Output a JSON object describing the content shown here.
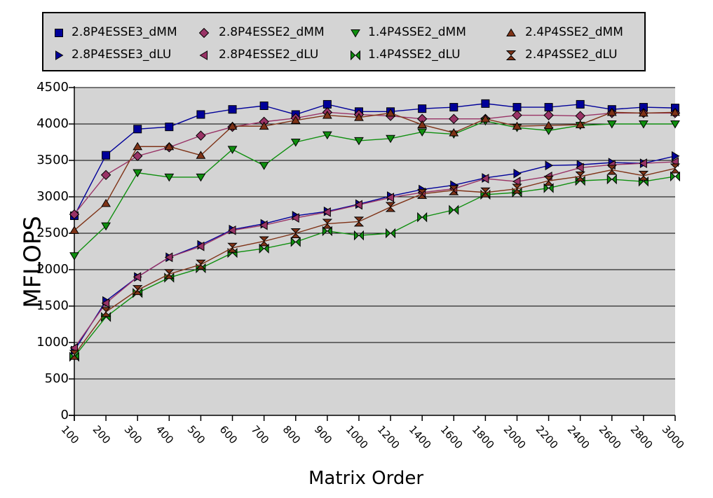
{
  "page": {
    "background": "#ffffff"
  },
  "chart_data": {
    "type": "line",
    "title": "",
    "xlabel": "Matrix Order",
    "ylabel": "MFLOPS",
    "x_categories": [
      100,
      200,
      300,
      400,
      500,
      600,
      700,
      800,
      900,
      1000,
      1200,
      1400,
      1600,
      1800,
      2000,
      2200,
      2400,
      2600,
      2800,
      3000
    ],
    "ylim": [
      0,
      4500
    ],
    "yticks": [
      0,
      500,
      1000,
      1500,
      2000,
      2500,
      3000,
      3500,
      4000,
      4500
    ],
    "grid": "horizontal",
    "gridline_color": "#000000",
    "plot_bg": "#d4d4d4",
    "legend": {
      "position": "top",
      "rows": 2,
      "bg": "#d4d4d4",
      "border_color": "#000000"
    },
    "series": [
      {
        "name": "2.8P4ESSE3_dMM",
        "marker": "square",
        "color": "#000099",
        "values": [
          2740,
          3570,
          3930,
          3960,
          4130,
          4200,
          4250,
          4130,
          4270,
          4170,
          4170,
          4210,
          4230,
          4280,
          4230,
          4230,
          4270,
          4200,
          4230,
          4220
        ]
      },
      {
        "name": "2.8P4ESSE2_dMM",
        "marker": "diamond",
        "color": "#993366",
        "values": [
          2760,
          3300,
          3560,
          3680,
          3840,
          3960,
          4030,
          4080,
          4160,
          4130,
          4110,
          4070,
          4070,
          4070,
          4120,
          4120,
          4110,
          4150,
          4150,
          4150
        ]
      },
      {
        "name": "1.4P4SSE2_dMM",
        "marker": "triangle-down",
        "color": "#0f8f0f",
        "values": [
          2190,
          2600,
          3330,
          3270,
          3270,
          3650,
          3430,
          3750,
          3850,
          3770,
          3800,
          3890,
          3860,
          4040,
          3950,
          3910,
          3980,
          4000,
          4000,
          4000
        ]
      },
      {
        "name": "2.4P4SSE2_dMM",
        "marker": "triangle-up",
        "color": "#7f3317",
        "values": [
          2540,
          2910,
          3690,
          3690,
          3570,
          3970,
          3970,
          4050,
          4120,
          4090,
          4150,
          3990,
          3880,
          4070,
          3970,
          3980,
          3990,
          4160,
          4150,
          4160
        ]
      },
      {
        "name": "2.8P4ESSE3_dLU",
        "marker": "triangle-right",
        "color": "#000099",
        "values": [
          890,
          1570,
          1900,
          2170,
          2340,
          2550,
          2630,
          2740,
          2800,
          2900,
          3010,
          3100,
          3160,
          3260,
          3320,
          3430,
          3440,
          3470,
          3460,
          3560
        ]
      },
      {
        "name": "2.8P4ESSE2_dLU",
        "marker": "triangle-left",
        "color": "#993366",
        "values": [
          925,
          1540,
          1900,
          2170,
          2320,
          2540,
          2610,
          2710,
          2790,
          2890,
          2990,
          3060,
          3110,
          3250,
          3210,
          3280,
          3400,
          3440,
          3460,
          3480
        ]
      },
      {
        "name": "1.4P4SSE2_dLU",
        "marker": "bowtie-horizontal",
        "color": "#0f8f0f",
        "values": [
          805,
          1350,
          1680,
          1890,
          2020,
          2230,
          2290,
          2380,
          2530,
          2470,
          2500,
          2720,
          2820,
          3030,
          3060,
          3120,
          3220,
          3240,
          3210,
          3280
        ]
      },
      {
        "name": "2.4P4SSE2_dLU",
        "marker": "bowtie-vertical",
        "color": "#7f3317",
        "values": [
          830,
          1420,
          1720,
          1940,
          2070,
          2300,
          2390,
          2500,
          2630,
          2660,
          2860,
          3040,
          3090,
          3060,
          3110,
          3220,
          3280,
          3370,
          3290,
          3390
        ]
      }
    ]
  }
}
